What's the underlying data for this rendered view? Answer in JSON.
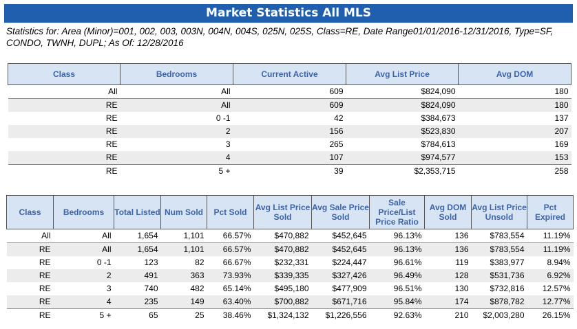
{
  "title": "Market Statistics All MLS",
  "criteria": "Statistics for: Area (Minor)=001, 002, 003, 003N, 004N, 004S, 025N, 025S, Class=RE, Date Range01/01/2016-12/31/2016, Type=SF, CONDO, TWNH, DUPL; As Of: 12/28/2016",
  "table1": {
    "headers": [
      "Class",
      "Bedrooms",
      "Current Active",
      "Avg List Price",
      "Avg DOM"
    ],
    "rows": [
      [
        "All",
        "All",
        "609",
        "$824,090",
        "180"
      ],
      [
        "RE",
        "All",
        "609",
        "$824,090",
        "180"
      ],
      [
        "RE",
        "0 -1",
        "42",
        "$384,673",
        "137"
      ],
      [
        "RE",
        "2",
        "156",
        "$523,830",
        "207"
      ],
      [
        "RE",
        "3",
        "265",
        "$784,613",
        "169"
      ],
      [
        "RE",
        "4",
        "107",
        "$974,577",
        "153"
      ],
      [
        "RE",
        "5 +",
        "39",
        "$2,353,715",
        "258"
      ]
    ]
  },
  "table2": {
    "headers": [
      "Class",
      "Bedrooms",
      "Total Listed",
      "Num Sold",
      "Pct Sold",
      "Avg List Price Sold",
      "Avg Sale Price Sold",
      "Sale Price/List Price Ratio",
      "Avg DOM Sold",
      "Avg List Price Unsold",
      "Pct Expired"
    ],
    "rows": [
      [
        "All",
        "All",
        "1,654",
        "1,101",
        "66.57%",
        "$470,882",
        "$452,645",
        "96.13%",
        "136",
        "$783,554",
        "11.19%"
      ],
      [
        "RE",
        "All",
        "1,654",
        "1,101",
        "66.57%",
        "$470,882",
        "$452,645",
        "96.13%",
        "136",
        "$783,554",
        "11.19%"
      ],
      [
        "RE",
        "0 -1",
        "123",
        "82",
        "66.67%",
        "$232,331",
        "$224,447",
        "96.61%",
        "119",
        "$383,977",
        "8.94%"
      ],
      [
        "RE",
        "2",
        "491",
        "363",
        "73.93%",
        "$339,335",
        "$327,426",
        "96.49%",
        "128",
        "$531,736",
        "6.92%"
      ],
      [
        "RE",
        "3",
        "740",
        "482",
        "65.14%",
        "$495,180",
        "$477,909",
        "96.51%",
        "130",
        "$732,816",
        "12.57%"
      ],
      [
        "RE",
        "4",
        "235",
        "149",
        "63.40%",
        "$700,882",
        "$671,716",
        "95.84%",
        "174",
        "$878,782",
        "12.77%"
      ],
      [
        "RE",
        "5 +",
        "65",
        "25",
        "38.46%",
        "$1,324,132",
        "$1,226,556",
        "92.63%",
        "210",
        "$2,003,280",
        "26.15%"
      ]
    ]
  }
}
